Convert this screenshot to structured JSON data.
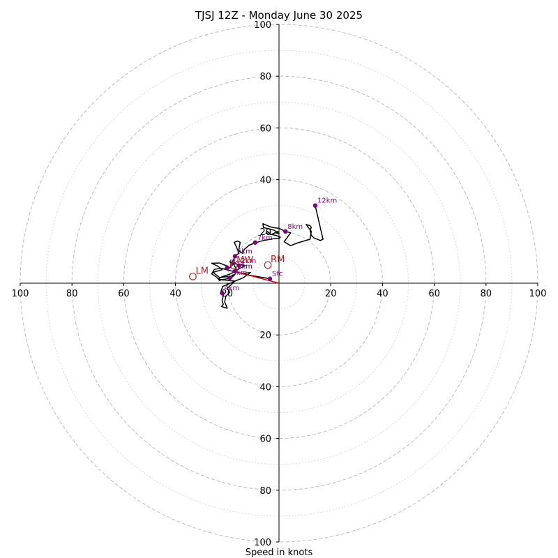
{
  "chart_data": {
    "type": "line",
    "title": "TJSJ 12Z - Monday June 30 2025",
    "xlabel": "Speed in knots",
    "xlim": [
      -100,
      100
    ],
    "ylim": [
      -100,
      100
    ],
    "rings_major": [
      20,
      40,
      60,
      80,
      100
    ],
    "rings_minor": [
      10,
      30,
      50,
      70,
      90
    ],
    "x_ticks": [
      -100,
      -80,
      -60,
      -40,
      -20,
      20,
      40,
      60,
      80,
      100
    ],
    "x_tick_labels": [
      "100",
      "80",
      "60",
      "40",
      "20",
      "20",
      "40",
      "60",
      "80",
      "100"
    ],
    "y_ticks": [
      100,
      80,
      60,
      40,
      20,
      -20,
      -40,
      -60,
      -80,
      -100
    ],
    "y_tick_labels": [
      "100",
      "80",
      "60",
      "40",
      "20",
      "20",
      "40",
      "60",
      "80",
      "100"
    ],
    "hodograph": {
      "color": "#000000",
      "points": [
        [
          -3.5,
          1.7
        ],
        [
          -8,
          2.5
        ],
        [
          -12,
          3.2
        ],
        [
          -15.5,
          4
        ],
        [
          -17,
          4.6
        ],
        [
          -15,
          5.8
        ],
        [
          -13,
          6.8
        ],
        [
          -17,
          7.5
        ],
        [
          -19,
          8.3
        ],
        [
          -18,
          7
        ],
        [
          -19,
          6
        ],
        [
          -21,
          5.5
        ],
        [
          -20,
          6.6
        ],
        [
          -23,
          7.8
        ],
        [
          -26,
          7.7
        ],
        [
          -23.5,
          6.5
        ],
        [
          -22,
          5.2
        ],
        [
          -25.5,
          4.2
        ],
        [
          -23,
          2.2
        ],
        [
          -19,
          2.6
        ],
        [
          -17,
          3.4
        ],
        [
          -18.5,
          2
        ],
        [
          -22.5,
          1.2
        ],
        [
          -23,
          1
        ],
        [
          -24,
          2.2
        ],
        [
          -26,
          3.6
        ],
        [
          -25,
          5.3
        ],
        [
          -22.5,
          5.8
        ],
        [
          -17.5,
          4.5
        ],
        [
          -14,
          3.8
        ],
        [
          -11,
          4.1
        ],
        [
          -14,
          2
        ],
        [
          -17,
          0.8
        ],
        [
          -20,
          -0.5
        ],
        [
          -21.8,
          -1.3
        ],
        [
          -22.5,
          -3.4
        ],
        [
          -21.5,
          -4.8
        ],
        [
          -22,
          -6.7
        ],
        [
          -21.5,
          -8.2
        ],
        [
          -22.3,
          -9
        ],
        [
          -20,
          -9.7
        ],
        [
          -21,
          -7.2
        ],
        [
          -20.5,
          -5
        ],
        [
          -19,
          -3.5
        ],
        [
          -20,
          -2
        ],
        [
          -17,
          0.8
        ],
        [
          -21.5,
          1.2
        ],
        [
          -23.5,
          1.6
        ],
        [
          -22,
          2.5
        ],
        [
          -19,
          3.5
        ],
        [
          -17,
          4.5
        ],
        [
          -16.5,
          5.5
        ],
        [
          -18,
          8
        ],
        [
          -17,
          10.4
        ],
        [
          -15.5,
          11.6
        ],
        [
          -16.5,
          14.1
        ],
        [
          -17.3,
          15.8
        ],
        [
          -16,
          16.3
        ],
        [
          -15,
          15.8
        ],
        [
          -15.6,
          12.5
        ],
        [
          -14,
          11.5
        ],
        [
          -13.5,
          13
        ],
        [
          -11.5,
          14.7
        ],
        [
          -9,
          15.7
        ],
        [
          -6,
          16.5
        ],
        [
          -3,
          17
        ],
        [
          -2,
          17.2
        ],
        [
          0.2,
          17.4
        ],
        [
          0.5,
          17.8
        ],
        [
          -1,
          18.4
        ],
        [
          -3.2,
          18.9
        ],
        [
          -4.5,
          20
        ],
        [
          -5,
          19.2
        ],
        [
          -3,
          18.8
        ],
        [
          -1.5,
          19.5
        ],
        [
          0,
          19.2
        ],
        [
          -2,
          20.5
        ],
        [
          -6,
          21.5
        ],
        [
          -6.2,
          23
        ],
        [
          -3.5,
          21.8
        ],
        [
          -1,
          21.3
        ],
        [
          0,
          21.2
        ],
        [
          2.5,
          20
        ],
        [
          4.5,
          19.5
        ],
        [
          2,
          16
        ],
        [
          4.5,
          14.5
        ],
        [
          7,
          15.5
        ],
        [
          12,
          17
        ],
        [
          12.5,
          20
        ],
        [
          11,
          22
        ],
        [
          10.5,
          22.7
        ],
        [
          12,
          22.2
        ],
        [
          12.5,
          21.5
        ],
        [
          12,
          20.5
        ],
        [
          12.5,
          18.5
        ],
        [
          13.5,
          17.5
        ],
        [
          16,
          16.5
        ],
        [
          17,
          17
        ],
        [
          14,
          30
        ]
      ]
    },
    "height_markers": [
      {
        "label": "Sfc",
        "x": -3.5,
        "y": 1.7
      },
      {
        "label": "1km",
        "x": -17,
        "y": 4.6
      },
      {
        "label": "2km",
        "x": -15.5,
        "y": 6.8
      },
      {
        "label": "3km",
        "x": -19,
        "y": 2.1
      },
      {
        "label": "4km",
        "x": -22,
        "y": -3.8
      },
      {
        "label": "5km",
        "x": -20,
        "y": 6
      },
      {
        "label": "6km",
        "x": -17,
        "y": 10.4
      },
      {
        "label": "7km",
        "x": -9.2,
        "y": 15.7
      },
      {
        "label": "8km",
        "x": 2.5,
        "y": 20
      },
      {
        "label": "12km",
        "x": 14,
        "y": 30
      }
    ],
    "storm_motion": [
      {
        "label": "RM",
        "x": -4.3,
        "y": 7
      },
      {
        "label": "LM",
        "x": -33.3,
        "y": 2.6
      },
      {
        "label": "MW",
        "x": -17.5,
        "y": 6.8
      }
    ],
    "shear_vector": {
      "color": "#e00000",
      "from": [
        0,
        0
      ],
      "to": [
        -17.5,
        4.6
      ]
    },
    "colors": {
      "grid_major": "#bdbdbd",
      "grid_minor": "#cfcfcf",
      "markers": "#800080",
      "storm_motion": "#b22222",
      "axes": "#000000"
    }
  }
}
